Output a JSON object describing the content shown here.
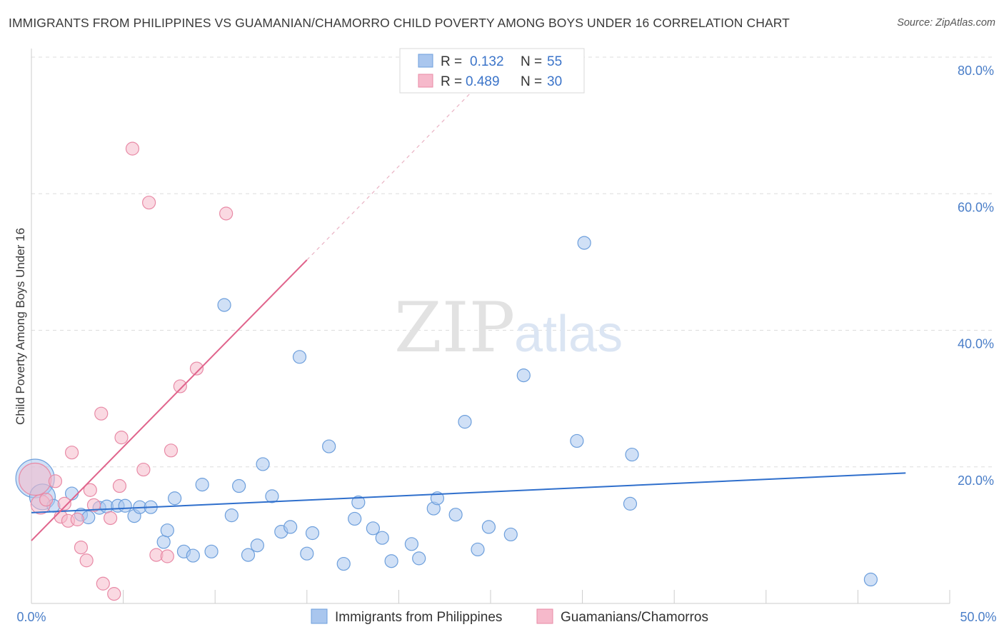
{
  "title": "IMMIGRANTS FROM PHILIPPINES VS GUAMANIAN/CHAMORRO CHILD POVERTY AMONG BOYS UNDER 16 CORRELATION CHART",
  "source": "Source: ZipAtlas.com",
  "watermark": {
    "zip": "ZIP",
    "atlas": "atlas"
  },
  "colors": {
    "blue_fill": "#a9c6ee",
    "blue_stroke": "#6d9fdc",
    "blue_line": "#2f6fcc",
    "pink_fill": "#f6b9cb",
    "pink_stroke": "#e88aa6",
    "pink_line": "#e0648c",
    "tick_text": "#4a7ec8",
    "grid": "#dddddd"
  },
  "legend": {
    "rows": [
      {
        "r_label": "R =",
        "r_value": "0.132",
        "n_label": "N =",
        "n_value": "55"
      },
      {
        "r_label": "R =",
        "r_value": "0.489",
        "n_label": "N =",
        "n_value": "30"
      }
    ]
  },
  "chart_data": {
    "type": "scatter",
    "title": "IMMIGRANTS FROM PHILIPPINES VS GUAMANIAN/CHAMORRO CHILD POVERTY AMONG BOYS UNDER 16 CORRELATION CHART",
    "xlabel": "",
    "ylabel": "Child Poverty Among Boys Under 16",
    "xlim": [
      0,
      50
    ],
    "ylim": [
      0,
      80
    ],
    "x_tick_labels": [
      "0.0%",
      "50.0%"
    ],
    "y_ticks": [
      20,
      40,
      60,
      80
    ],
    "y_tick_labels": [
      "20.0%",
      "40.0%",
      "60.0%",
      "80.0%"
    ],
    "grid": true,
    "legend_position": "top-center",
    "series": [
      {
        "name": "Immigrants from Philippines",
        "color": "#a9c6ee",
        "regression": {
          "x0": 0,
          "y0": 13.3,
          "x1": 47.6,
          "y1": 19.1
        },
        "points": [
          [
            0.2,
            18.3,
            3
          ],
          [
            0.6,
            15.6,
            2
          ],
          [
            1.2,
            14.3,
            1
          ],
          [
            2.2,
            16.1,
            1
          ],
          [
            2.7,
            13.0,
            1
          ],
          [
            3.1,
            12.6,
            1
          ],
          [
            3.7,
            14.0,
            1
          ],
          [
            4.1,
            14.2,
            1
          ],
          [
            4.7,
            14.3,
            1
          ],
          [
            5.1,
            14.3,
            1
          ],
          [
            5.6,
            12.8,
            1
          ],
          [
            5.9,
            14.1,
            1
          ],
          [
            6.5,
            14.1,
            1
          ],
          [
            7.2,
            9.0,
            1
          ],
          [
            7.4,
            10.7,
            1
          ],
          [
            7.8,
            15.4,
            1
          ],
          [
            8.3,
            7.6,
            1
          ],
          [
            8.8,
            7.0,
            1
          ],
          [
            9.3,
            17.4,
            1
          ],
          [
            9.8,
            7.6,
            1
          ],
          [
            10.5,
            43.7,
            1
          ],
          [
            10.9,
            12.9,
            1
          ],
          [
            11.3,
            17.2,
            1
          ],
          [
            11.8,
            7.1,
            1
          ],
          [
            12.3,
            8.5,
            1
          ],
          [
            12.6,
            20.4,
            1
          ],
          [
            13.1,
            15.7,
            1
          ],
          [
            13.6,
            10.5,
            1
          ],
          [
            14.1,
            11.2,
            1
          ],
          [
            14.6,
            36.1,
            1
          ],
          [
            15.0,
            7.3,
            1
          ],
          [
            15.3,
            10.3,
            1
          ],
          [
            16.2,
            23.0,
            1
          ],
          [
            17.0,
            5.8,
            1
          ],
          [
            17.6,
            12.4,
            1
          ],
          [
            17.8,
            14.8,
            1
          ],
          [
            18.6,
            11.0,
            1
          ],
          [
            19.1,
            9.6,
            1
          ],
          [
            19.6,
            6.2,
            1
          ],
          [
            20.7,
            8.7,
            1
          ],
          [
            21.1,
            6.6,
            1
          ],
          [
            21.9,
            13.9,
            1
          ],
          [
            22.1,
            15.4,
            1
          ],
          [
            23.1,
            13.0,
            1
          ],
          [
            23.6,
            26.6,
            1
          ],
          [
            24.3,
            7.9,
            1
          ],
          [
            24.9,
            11.2,
            1
          ],
          [
            26.1,
            10.1,
            1
          ],
          [
            26.8,
            33.4,
            1
          ],
          [
            29.7,
            23.8,
            1
          ],
          [
            30.1,
            52.8,
            1
          ],
          [
            32.6,
            14.6,
            1
          ],
          [
            32.7,
            21.8,
            1
          ],
          [
            45.7,
            3.5,
            1
          ]
        ]
      },
      {
        "name": "Guamanians/Chamorros",
        "color": "#f6b9cb",
        "regression": {
          "x0": 0,
          "y0": 9.2,
          "x1": 15.0,
          "y1": 50.3
        },
        "regression_extension": {
          "x0": 15.0,
          "y0": 50.3,
          "x1": 24.0,
          "y1": 75.0
        },
        "points": [
          [
            0.2,
            18.2,
            2.5
          ],
          [
            0.5,
            14.5,
            1.5
          ],
          [
            0.8,
            15.2,
            1
          ],
          [
            1.3,
            17.9,
            1
          ],
          [
            1.6,
            12.7,
            1
          ],
          [
            1.8,
            14.6,
            1
          ],
          [
            2.0,
            12.1,
            1
          ],
          [
            2.2,
            22.1,
            1
          ],
          [
            2.5,
            12.3,
            1
          ],
          [
            2.7,
            8.2,
            1
          ],
          [
            3.0,
            6.3,
            1
          ],
          [
            3.2,
            16.6,
            1
          ],
          [
            3.4,
            14.4,
            1
          ],
          [
            3.8,
            27.8,
            1
          ],
          [
            3.9,
            2.9,
            1
          ],
          [
            4.3,
            12.5,
            1
          ],
          [
            4.5,
            1.4,
            1
          ],
          [
            4.8,
            17.2,
            1
          ],
          [
            4.9,
            24.3,
            1
          ],
          [
            5.5,
            66.6,
            1
          ],
          [
            6.1,
            19.6,
            1
          ],
          [
            6.4,
            58.7,
            1
          ],
          [
            6.8,
            7.1,
            1
          ],
          [
            7.4,
            6.9,
            1
          ],
          [
            7.6,
            22.4,
            1
          ],
          [
            8.1,
            31.8,
            1
          ],
          [
            9.0,
            34.4,
            1
          ],
          [
            10.6,
            57.1,
            1
          ]
        ]
      }
    ]
  }
}
